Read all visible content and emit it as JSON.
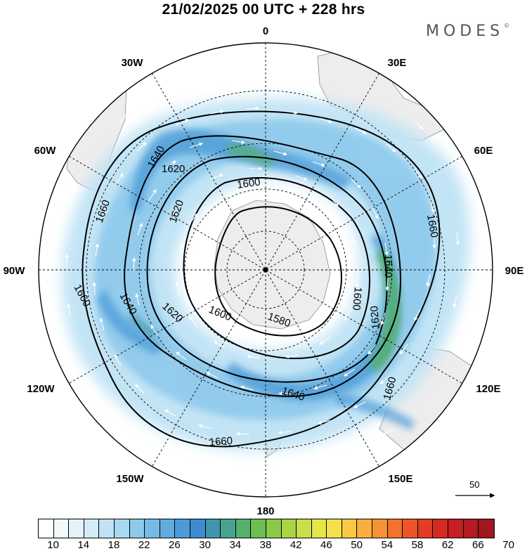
{
  "title": "21/02/2025  00 UTC  + 228 hrs",
  "brand": "MODES",
  "brand_mark": "©",
  "longitude_labels": {
    "n0": "0",
    "n30w": "30W",
    "n30e": "30E",
    "n60w": "60W",
    "n60e": "60E",
    "n90w": "90W",
    "n90e": "90E",
    "n120w": "120W",
    "n120e": "120E",
    "n150w": "150W",
    "n150e": "150E",
    "n180": "180"
  },
  "contour_labels": [
    "1580",
    "1600",
    "1600",
    "1600",
    "1620",
    "1620",
    "1620",
    "1620",
    "1640",
    "1640",
    "1640",
    "1640",
    "1660",
    "1660",
    "1660",
    "1660"
  ],
  "reference_vector": "50",
  "colorbar": {
    "colors": [
      "#ffffff",
      "#f2f9fd",
      "#e4f3fb",
      "#d2ecf8",
      "#bfe3f5",
      "#a9d8f1",
      "#8ec9ec",
      "#78bae6",
      "#62abe0",
      "#4c9bd8",
      "#3e8ccd",
      "#3f96ad",
      "#47a38d",
      "#55b06c",
      "#6cbd52",
      "#8ac948",
      "#aad446",
      "#c9de48",
      "#e5e64b",
      "#f6e04a",
      "#f9c944",
      "#f9ae3d",
      "#f79135",
      "#f3722e",
      "#ec5528",
      "#e23c24",
      "#d42a23",
      "#c51f23",
      "#b41a22",
      "#a01720"
    ],
    "tick_labels": [
      "10",
      "14",
      "18",
      "22",
      "26",
      "30",
      "34",
      "38",
      "42",
      "46",
      "50",
      "54",
      "58",
      "62",
      "66",
      "70"
    ]
  },
  "map": {
    "projection": "south polar stereographic",
    "field": "wind speed (shaded) and geopotential height (contours)",
    "contour_interval": 20
  }
}
